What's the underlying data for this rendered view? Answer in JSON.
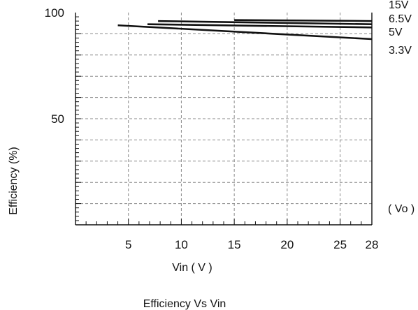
{
  "chart_data": {
    "type": "line",
    "title": "Efficiency Vs Vin",
    "xlabel": "Vin ( V )",
    "ylabel": "Efficiency (%)",
    "xlim": [
      0,
      28
    ],
    "ylim": [
      0,
      100
    ],
    "x_ticks": [
      5,
      10,
      15,
      20,
      25,
      28
    ],
    "x_tick_labels": [
      "5",
      "10",
      "15",
      "20",
      "25",
      "28"
    ],
    "y_ticks": [
      50,
      100
    ],
    "y_tick_labels": [
      "50",
      "100"
    ],
    "grid": true,
    "legend_title": "( Vo )",
    "legend_placement": "right",
    "line_color": "#111111",
    "grid_color": "#8a8a8a",
    "series": [
      {
        "name": "15V",
        "x": [
          15,
          28
        ],
        "y": [
          96.5,
          96
        ]
      },
      {
        "name": "6.5V",
        "x": [
          7.8,
          28
        ],
        "y": [
          96,
          94.5
        ]
      },
      {
        "name": "5V",
        "x": [
          6.8,
          28
        ],
        "y": [
          94.5,
          93
        ]
      },
      {
        "name": "3.3V",
        "x": [
          4,
          28
        ],
        "y": [
          94,
          87.5
        ]
      }
    ]
  }
}
